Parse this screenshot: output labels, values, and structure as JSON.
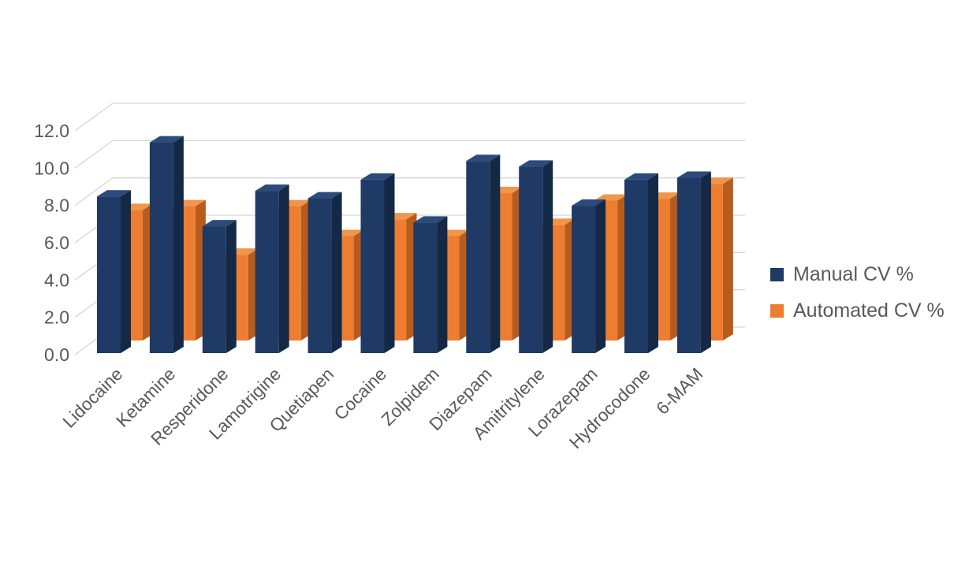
{
  "chart_data": {
    "type": "bar",
    "style": "3d-clustered-column",
    "title": "",
    "xlabel": "",
    "ylabel": "",
    "categories": [
      "Lidocaine",
      "Ketamine",
      "Resperidone",
      "Lamotrigine",
      "Quetiapen",
      "Cocaine",
      "Zolpidem",
      "Diazepam",
      "Amitritylene",
      "Lorazepam",
      "Hydrocodone",
      "6-MAM"
    ],
    "series": [
      {
        "name": "Manual CV %",
        "color": "#1F3A64",
        "color_top": "#2A4B7C",
        "color_side": "#132946",
        "values": [
          8.4,
          11.3,
          6.8,
          8.7,
          8.3,
          9.3,
          7.0,
          10.3,
          10.0,
          7.9,
          9.3,
          9.4
        ]
      },
      {
        "name": "Automated CV %",
        "color": "#ED7D31",
        "color_top": "#F0964B",
        "color_side": "#B85C1E",
        "values": [
          7.0,
          7.2,
          4.6,
          7.2,
          5.6,
          6.5,
          5.6,
          7.9,
          6.2,
          7.5,
          7.6,
          8.4
        ]
      }
    ],
    "ylim": [
      0,
      12
    ],
    "yticks": [
      0,
      2,
      4,
      6,
      8,
      10,
      12
    ],
    "ytick_labels": [
      "0.0",
      "2.0",
      "4.0",
      "6.0",
      "8.0",
      "10.0",
      "12.0"
    ],
    "grid": true,
    "gridline_color": "#D6D6D6",
    "axis_label_color": "#595959",
    "legend_position": "right",
    "background_color": "#FFFFFF",
    "x_labels_rotation_deg": 45
  }
}
